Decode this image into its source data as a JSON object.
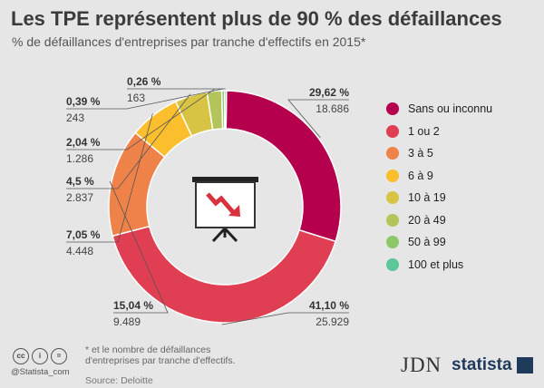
{
  "title": "Les TPE représentent plus de 90 % des défaillances",
  "subtitle": "% de défaillances d'entreprises par tranche d'effectifs en 2015*",
  "chart_data": {
    "type": "pie",
    "title": "Les TPE représentent plus de 90 % des défaillances",
    "subtitle": "% de défaillances d'entreprises par tranche d'effectifs en 2015*",
    "legend_position": "right",
    "slices": [
      {
        "name": "Sans ou inconnu",
        "value": 29.62,
        "pct_label": "29,62 %",
        "count_label": "18.686",
        "color": "#b5004d"
      },
      {
        "name": "1 ou 2",
        "value": 41.1,
        "pct_label": "41,10 %",
        "count_label": "25.929",
        "color": "#e03e52"
      },
      {
        "name": "3 à 5",
        "value": 15.04,
        "pct_label": "15,04 %",
        "count_label": "9.489",
        "color": "#ef8248"
      },
      {
        "name": "6 à 9",
        "value": 7.05,
        "pct_label": "7,05 %",
        "count_label": "4.448",
        "color": "#fbbf2e"
      },
      {
        "name": "10 à 19",
        "value": 4.5,
        "pct_label": "4,5 %",
        "count_label": "2.837",
        "color": "#d7c444"
      },
      {
        "name": "20 à 49",
        "value": 2.04,
        "pct_label": "2,04 %",
        "count_label": "1.286",
        "color": "#b3c45a"
      },
      {
        "name": "50 à 99",
        "value": 0.39,
        "pct_label": "0,39 %",
        "count_label": "243",
        "color": "#8ec76a"
      },
      {
        "name": "100 et plus",
        "value": 0.26,
        "pct_label": "0,26 %",
        "count_label": "163",
        "color": "#5ec79a"
      }
    ]
  },
  "center_icon": "presentation-chart-down-icon",
  "footer": {
    "license_icons": [
      "cc",
      "i",
      "="
    ],
    "handle": "@Statista_com",
    "note_line1": "* et le nombre de défaillances",
    "note_line2": "d'entreprises par tranche d'effectifs.",
    "source": "Source: Deloitte",
    "jdn": "JDN",
    "statista": "statista"
  }
}
